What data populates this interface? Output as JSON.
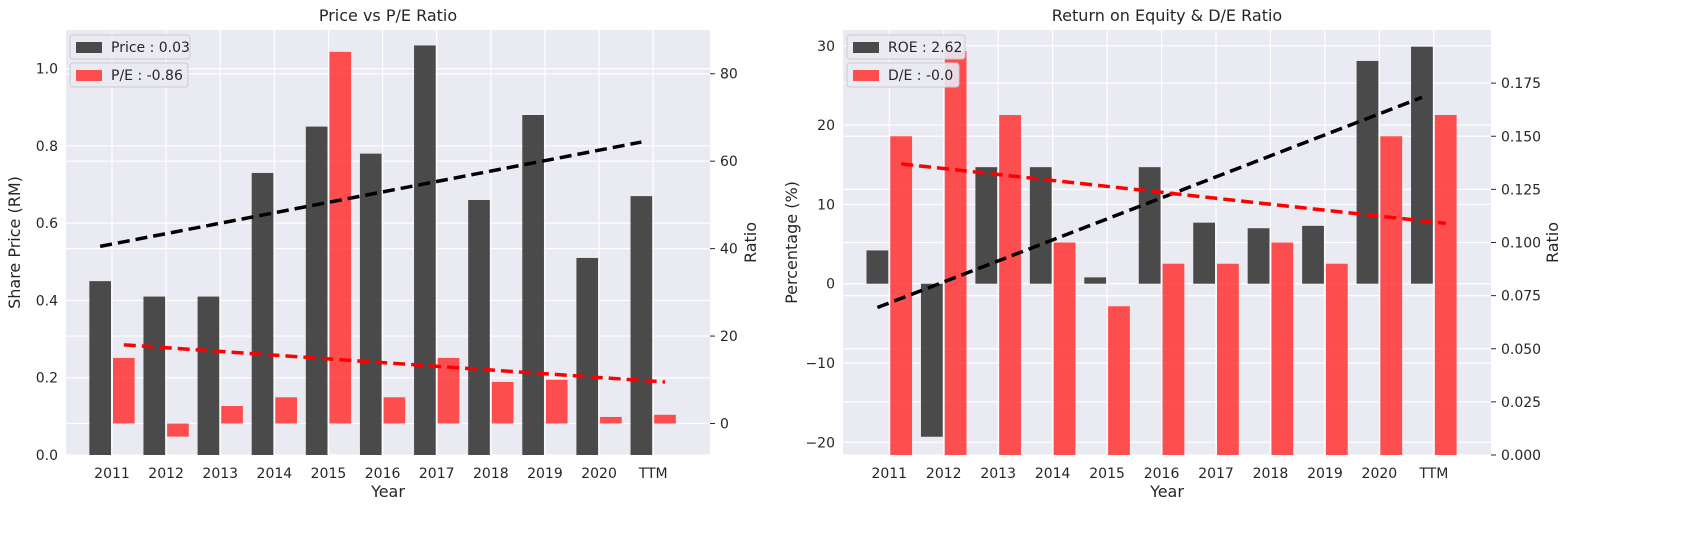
{
  "chart_data": [
    {
      "type": "bar",
      "title": "Price vs P/E Ratio",
      "xlabel": "Year",
      "ylabel": "Share Price (RM)",
      "y2label": "Ratio",
      "categories": [
        "2011",
        "2012",
        "2013",
        "2014",
        "2015",
        "2016",
        "2017",
        "2018",
        "2019",
        "2020",
        "TTM"
      ],
      "ylim": [
        0,
        1.1
      ],
      "y2lim": [
        -7.2,
        90
      ],
      "yticks": [
        "0.0",
        "0.2",
        "0.4",
        "0.6",
        "0.8",
        "1.0"
      ],
      "y2ticks": [
        "0",
        "20",
        "40",
        "60",
        "80"
      ],
      "grid": true,
      "legend_position": "top-left",
      "series": [
        {
          "name": "Price : 0.03",
          "axis": "left",
          "color": "#333333",
          "values": [
            0.45,
            0.41,
            0.41,
            0.73,
            0.85,
            0.78,
            1.06,
            0.66,
            0.88,
            0.51,
            0.67
          ],
          "trend": [
            0.54,
            0.81
          ]
        },
        {
          "name": "P/E : -0.86",
          "axis": "right",
          "color": "#ff3333",
          "values": [
            15,
            -3,
            4,
            6,
            85,
            6,
            15,
            9.5,
            10,
            1.5,
            2
          ],
          "trend": [
            18,
            9.5
          ]
        }
      ]
    },
    {
      "type": "bar",
      "title": "Return on Equity & D/E Ratio",
      "xlabel": "Year",
      "ylabel": "Percentage (%)",
      "y2label": "Ratio",
      "categories": [
        "2011",
        "2012",
        "2013",
        "2014",
        "2015",
        "2016",
        "2017",
        "2018",
        "2019",
        "2020",
        "TTM"
      ],
      "ylim": [
        -21.6,
        32
      ],
      "y2lim": [
        0,
        0.2
      ],
      "yticks": [
        "−20",
        "−10",
        "0",
        "10",
        "20",
        "30"
      ],
      "y2ticks": [
        "0.000",
        "0.025",
        "0.050",
        "0.075",
        "0.100",
        "0.125",
        "0.150",
        "0.175"
      ],
      "grid": true,
      "legend_position": "top-left",
      "series": [
        {
          "name": "ROE : 2.62",
          "axis": "left",
          "color": "#333333",
          "values": [
            4.2,
            -19.3,
            14.7,
            14.7,
            0.8,
            14.7,
            7.7,
            7,
            7.3,
            28.1,
            29.9
          ],
          "trend": [
            -3,
            23.5
          ]
        },
        {
          "name": "D/E : -0.0",
          "axis": "right",
          "color": "#ff3333",
          "values": [
            0.15,
            0.19,
            0.16,
            0.1,
            0.07,
            0.09,
            0.09,
            0.1,
            0.09,
            0.15,
            0.16
          ],
          "trend": [
            0.137,
            0.109
          ]
        }
      ]
    }
  ]
}
